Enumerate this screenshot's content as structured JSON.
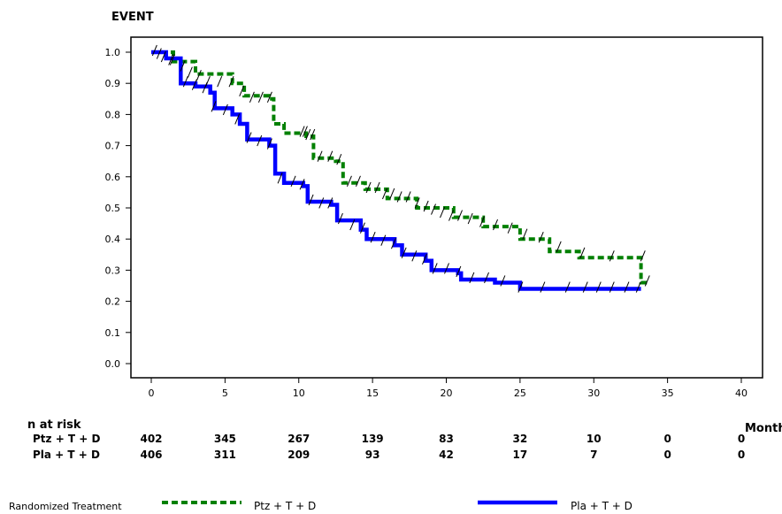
{
  "chart_data": {
    "type": "line",
    "title": "EVENT",
    "xlabel": "Month",
    "ylabel": "",
    "xlim": [
      0,
      40
    ],
    "ylim": [
      0,
      1.0
    ],
    "x_ticks": [
      0,
      5,
      10,
      15,
      20,
      25,
      30,
      35,
      40
    ],
    "y_ticks": [
      0.0,
      0.1,
      0.2,
      0.3,
      0.4,
      0.5,
      0.6,
      0.7,
      0.8,
      0.9,
      1.0
    ],
    "y_tick_labels": [
      "0.0",
      "0.1",
      "0.2",
      "0.3",
      "0.4",
      "0.5",
      "0.6",
      "0.7",
      "0.8",
      "0.9",
      "1.0"
    ],
    "grid": false,
    "legend_title": "Randomized Treatment",
    "legend_position": "bottom",
    "series": [
      {
        "name": "Ptz + T + D",
        "color": "#008000",
        "style": "dashed",
        "x": [
          0,
          1.5,
          3,
          5.5,
          6.3,
          8,
          8.3,
          9,
          10.5,
          11,
          12.5,
          13,
          14.5,
          16,
          18,
          20.5,
          22.5,
          25,
          27,
          29,
          33.2,
          33.6
        ],
        "y": [
          1.0,
          0.97,
          0.93,
          0.9,
          0.86,
          0.85,
          0.77,
          0.74,
          0.73,
          0.66,
          0.65,
          0.58,
          0.56,
          0.53,
          0.5,
          0.47,
          0.44,
          0.4,
          0.36,
          0.34,
          0.26,
          0.26
        ],
        "censor_x": [
          0.2,
          0.8,
          1.4,
          2.1,
          2.6,
          3.2,
          3.8,
          4.6,
          5.4,
          6.1,
          6.8,
          7.4,
          8.0,
          10.2,
          10.4,
          10.6,
          10.9,
          11.4,
          12.1,
          12.7,
          13.4,
          14.0,
          14.7,
          15.3,
          15.8,
          16.3,
          16.8,
          17.4,
          18.0,
          18.6,
          19.1,
          19.7,
          20.3,
          20.9,
          21.6,
          22.4,
          23.3,
          24.3,
          25.3,
          26.4,
          27.6,
          29.2,
          31.2,
          33.3,
          33.6
        ],
        "censor_y": [
          1.0,
          0.98,
          0.97,
          0.95,
          0.93,
          0.92,
          0.9,
          0.9,
          0.9,
          0.87,
          0.85,
          0.85,
          0.85,
          0.74,
          0.74,
          0.73,
          0.73,
          0.66,
          0.66,
          0.65,
          0.58,
          0.58,
          0.56,
          0.56,
          0.54,
          0.54,
          0.53,
          0.53,
          0.51,
          0.5,
          0.49,
          0.48,
          0.47,
          0.47,
          0.46,
          0.45,
          0.44,
          0.43,
          0.41,
          0.4,
          0.37,
          0.35,
          0.34,
          0.34,
          0.26
        ]
      },
      {
        "name": "Pla + T + D",
        "color": "#0000ff",
        "style": "solid",
        "x": [
          0,
          1,
          2,
          3,
          4,
          4.3,
          5.5,
          6,
          6.5,
          8,
          8.4,
          9,
          10.3,
          10.6,
          12.2,
          12.6,
          14.2,
          14.6,
          16.5,
          17,
          18.6,
          19,
          20.8,
          21,
          23.3,
          25,
          33.2
        ],
        "y": [
          1.0,
          0.98,
          0.9,
          0.89,
          0.87,
          0.82,
          0.8,
          0.77,
          0.72,
          0.7,
          0.61,
          0.58,
          0.57,
          0.52,
          0.51,
          0.46,
          0.43,
          0.4,
          0.38,
          0.35,
          0.33,
          0.3,
          0.29,
          0.27,
          0.26,
          0.24,
          0.24
        ],
        "censor_x": [
          0.5,
          1.3,
          2.3,
          2.9,
          3.6,
          4.2,
          5.0,
          5.8,
          6.6,
          7.3,
          8.0,
          8.7,
          9.6,
          10.2,
          10.8,
          11.5,
          12.1,
          12.8,
          13.6,
          14.3,
          15.0,
          15.7,
          16.4,
          17.1,
          17.8,
          18.5,
          19.2,
          20.0,
          20.8,
          21.7,
          22.7,
          23.8,
          25.0,
          26.5,
          28.2,
          29.4,
          30.3,
          31.2,
          32.2,
          33.0
        ],
        "censor_y": [
          0.99,
          0.97,
          0.9,
          0.89,
          0.88,
          0.82,
          0.81,
          0.78,
          0.72,
          0.71,
          0.7,
          0.59,
          0.58,
          0.57,
          0.52,
          0.51,
          0.51,
          0.46,
          0.44,
          0.43,
          0.4,
          0.39,
          0.38,
          0.35,
          0.34,
          0.33,
          0.3,
          0.3,
          0.29,
          0.27,
          0.27,
          0.26,
          0.24,
          0.24,
          0.24,
          0.24,
          0.24,
          0.24,
          0.24,
          0.24
        ]
      }
    ],
    "risk_table": {
      "title": "n at risk",
      "times": [
        0,
        5,
        10,
        15,
        20,
        25,
        30,
        35,
        40
      ],
      "rows": [
        {
          "label": "Ptz + T + D",
          "counts": [
            "402",
            "345",
            "267",
            "139",
            "83",
            "32",
            "10",
            "0",
            "0"
          ]
        },
        {
          "label": "Pla + T + D",
          "counts": [
            "406",
            "311",
            "209",
            "93",
            "42",
            "17",
            "7",
            "0",
            "0"
          ]
        }
      ]
    }
  }
}
